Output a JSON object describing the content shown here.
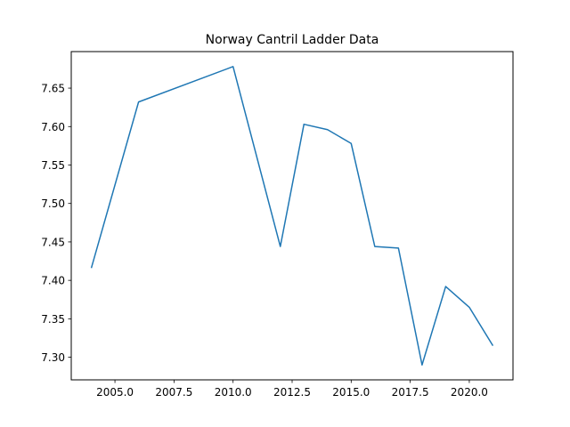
{
  "chart_data": {
    "type": "line",
    "title": "Norway Cantril Ladder Data",
    "xlabel": "",
    "ylabel": "",
    "xlim": [
      2003.15,
      2021.85
    ],
    "ylim": [
      7.2706,
      7.6975
    ],
    "xticks": [
      2005.0,
      2007.5,
      2010.0,
      2012.5,
      2015.0,
      2017.5,
      2020.0
    ],
    "xtick_labels": [
      "2005.0",
      "2007.5",
      "2010.0",
      "2012.5",
      "2015.0",
      "2017.5",
      "2020.0"
    ],
    "yticks": [
      7.3,
      7.35,
      7.4,
      7.45,
      7.5,
      7.55,
      7.6,
      7.65
    ],
    "ytick_labels": [
      "7.30",
      "7.35",
      "7.40",
      "7.45",
      "7.50",
      "7.55",
      "7.60",
      "7.65"
    ],
    "grid": false,
    "series": [
      {
        "color": "#1f77b4",
        "x": [
          2004,
          2006,
          2010,
          2012,
          2013,
          2014,
          2015,
          2016,
          2017,
          2018,
          2019,
          2020,
          2021
        ],
        "y": [
          7.416,
          7.632,
          7.678,
          7.444,
          7.603,
          7.596,
          7.578,
          7.444,
          7.442,
          7.29,
          7.392,
          7.365,
          7.315
        ]
      }
    ]
  }
}
